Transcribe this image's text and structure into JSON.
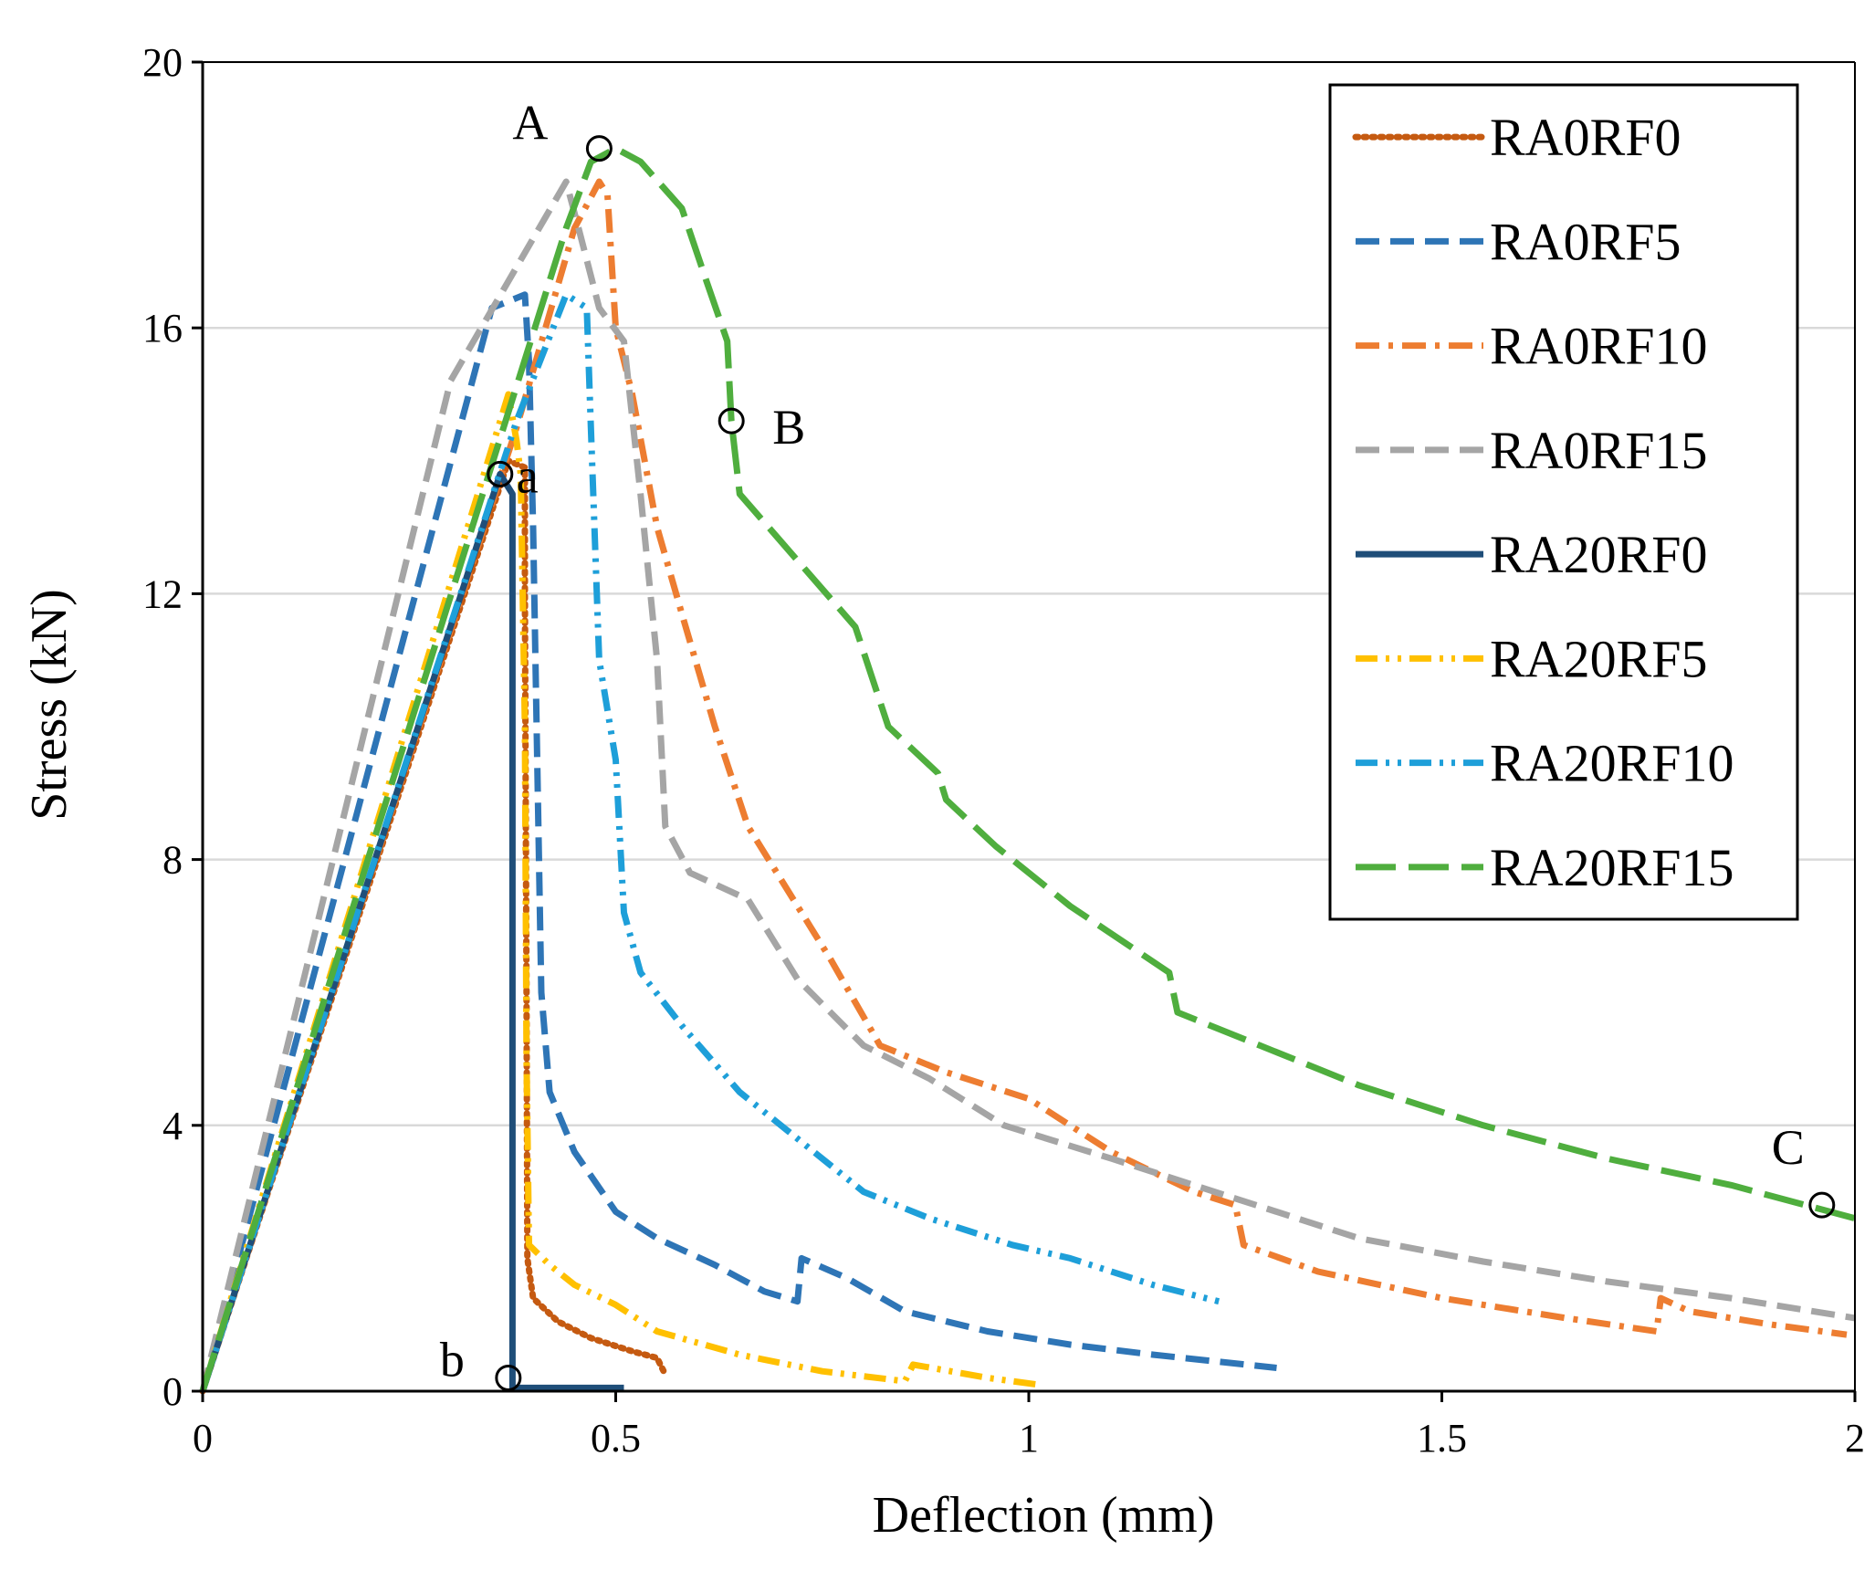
{
  "chart_data": {
    "type": "line",
    "title": "",
    "xlabel": "Deflection (mm)",
    "ylabel": "Stress (kN)",
    "xlim": [
      0,
      2
    ],
    "ylim": [
      0,
      20
    ],
    "xticks": [
      0,
      0.5,
      1,
      1.5,
      2
    ],
    "xtick_labels": [
      "0",
      "0.5",
      "1",
      "1.5",
      "2"
    ],
    "yticks": [
      0,
      4,
      8,
      12,
      16,
      20
    ],
    "ytick_labels": [
      "0",
      "4",
      "8",
      "12",
      "16",
      "20"
    ],
    "grid": "horizontal",
    "legend_position": "top-right",
    "series": [
      {
        "name": "RA0RF0",
        "color": "#c55a11",
        "dash": "dot",
        "points": [
          [
            0,
            0
          ],
          [
            0.37,
            14.0
          ],
          [
            0.39,
            13.9
          ],
          [
            0.39,
            12.0
          ],
          [
            0.392,
            6.0
          ],
          [
            0.393,
            2.0
          ],
          [
            0.4,
            1.4
          ],
          [
            0.43,
            1.05
          ],
          [
            0.47,
            0.8
          ],
          [
            0.52,
            0.6
          ],
          [
            0.55,
            0.5
          ],
          [
            0.56,
            0.25
          ]
        ]
      },
      {
        "name": "RA0RF5",
        "color": "#2e75b6",
        "dash": "dash",
        "points": [
          [
            0,
            0
          ],
          [
            0.35,
            16.3
          ],
          [
            0.39,
            16.5
          ],
          [
            0.395,
            15.5
          ],
          [
            0.4,
            13.0
          ],
          [
            0.41,
            6.0
          ],
          [
            0.42,
            4.5
          ],
          [
            0.45,
            3.6
          ],
          [
            0.5,
            2.7
          ],
          [
            0.55,
            2.3
          ],
          [
            0.62,
            1.9
          ],
          [
            0.68,
            1.5
          ],
          [
            0.72,
            1.35
          ],
          [
            0.725,
            2.0
          ],
          [
            0.78,
            1.7
          ],
          [
            0.85,
            1.2
          ],
          [
            0.95,
            0.9
          ],
          [
            1.05,
            0.7
          ],
          [
            1.15,
            0.55
          ],
          [
            1.3,
            0.35
          ]
        ]
      },
      {
        "name": "RA0RF10",
        "color": "#ed7d31",
        "dash": "dashdot",
        "points": [
          [
            0,
            0
          ],
          [
            0.38,
            14.5
          ],
          [
            0.45,
            17.5
          ],
          [
            0.48,
            18.2
          ],
          [
            0.49,
            18.0
          ],
          [
            0.5,
            16.0
          ],
          [
            0.52,
            15.0
          ],
          [
            0.55,
            13.0
          ],
          [
            0.58,
            11.7
          ],
          [
            0.62,
            10.0
          ],
          [
            0.66,
            8.5
          ],
          [
            0.7,
            7.7
          ],
          [
            0.76,
            6.5
          ],
          [
            0.82,
            5.2
          ],
          [
            0.9,
            4.8
          ],
          [
            1.0,
            4.4
          ],
          [
            1.1,
            3.6
          ],
          [
            1.2,
            3.0
          ],
          [
            1.25,
            2.8
          ],
          [
            1.26,
            2.2
          ],
          [
            1.35,
            1.8
          ],
          [
            1.5,
            1.4
          ],
          [
            1.65,
            1.1
          ],
          [
            1.76,
            0.9
          ],
          [
            1.765,
            1.4
          ],
          [
            1.8,
            1.2
          ],
          [
            1.9,
            1.0
          ],
          [
            1.99,
            0.85
          ]
        ]
      },
      {
        "name": "RA0RF15",
        "color": "#a5a5a5",
        "dash": "dash",
        "points": [
          [
            0,
            0
          ],
          [
            0.3,
            15.2
          ],
          [
            0.44,
            18.2
          ],
          [
            0.455,
            17.5
          ],
          [
            0.48,
            16.3
          ],
          [
            0.51,
            15.8
          ],
          [
            0.53,
            13.5
          ],
          [
            0.55,
            11.0
          ],
          [
            0.56,
            8.5
          ],
          [
            0.59,
            7.8
          ],
          [
            0.66,
            7.4
          ],
          [
            0.72,
            6.2
          ],
          [
            0.8,
            5.2
          ],
          [
            0.88,
            4.7
          ],
          [
            0.97,
            4.0
          ],
          [
            1.1,
            3.5
          ],
          [
            1.25,
            2.9
          ],
          [
            1.4,
            2.3
          ],
          [
            1.55,
            1.95
          ],
          [
            1.7,
            1.65
          ],
          [
            1.85,
            1.4
          ],
          [
            2.0,
            1.1
          ]
        ]
      },
      {
        "name": "RA20RF0",
        "color": "#1f4e79",
        "dash": "solid",
        "points": [
          [
            0,
            0
          ],
          [
            0.36,
            13.8
          ],
          [
            0.375,
            13.5
          ],
          [
            0.375,
            0.05
          ],
          [
            0.51,
            0.05
          ]
        ]
      },
      {
        "name": "RA20RF5",
        "color": "#ffc000",
        "dash": "dashdotdot",
        "points": [
          [
            0,
            0
          ],
          [
            0.37,
            15.0
          ],
          [
            0.38,
            14.3
          ],
          [
            0.385,
            13.8
          ],
          [
            0.39,
            10.0
          ],
          [
            0.392,
            5.0
          ],
          [
            0.395,
            2.2
          ],
          [
            0.42,
            1.9
          ],
          [
            0.45,
            1.6
          ],
          [
            0.5,
            1.3
          ],
          [
            0.55,
            0.9
          ],
          [
            0.65,
            0.55
          ],
          [
            0.75,
            0.3
          ],
          [
            0.85,
            0.15
          ],
          [
            0.86,
            0.4
          ],
          [
            0.95,
            0.2
          ],
          [
            1.01,
            0.1
          ]
        ]
      },
      {
        "name": "RA20RF10",
        "color": "#1e9fd9",
        "dash": "dashdotdot",
        "points": [
          [
            0,
            0
          ],
          [
            0.38,
            14.6
          ],
          [
            0.44,
            16.5
          ],
          [
            0.465,
            16.3
          ],
          [
            0.47,
            14.5
          ],
          [
            0.48,
            11.0
          ],
          [
            0.5,
            9.5
          ],
          [
            0.51,
            7.2
          ],
          [
            0.53,
            6.3
          ],
          [
            0.58,
            5.5
          ],
          [
            0.65,
            4.5
          ],
          [
            0.72,
            3.8
          ],
          [
            0.8,
            3.0
          ],
          [
            0.88,
            2.6
          ],
          [
            0.98,
            2.2
          ],
          [
            1.05,
            2.0
          ],
          [
            1.15,
            1.6
          ],
          [
            1.23,
            1.35
          ]
        ]
      },
      {
        "name": "RA20RF15",
        "color": "#4fae3e",
        "dash": "longdash",
        "points": [
          [
            0,
            0
          ],
          [
            0.2,
            8.0
          ],
          [
            0.44,
            17.5
          ],
          [
            0.47,
            18.5
          ],
          [
            0.5,
            18.7
          ],
          [
            0.53,
            18.5
          ],
          [
            0.58,
            17.8
          ],
          [
            0.61,
            16.7
          ],
          [
            0.635,
            15.8
          ],
          [
            0.64,
            14.6
          ],
          [
            0.65,
            13.5
          ],
          [
            0.72,
            12.5
          ],
          [
            0.79,
            11.5
          ],
          [
            0.83,
            10.0
          ],
          [
            0.89,
            9.3
          ],
          [
            0.9,
            8.9
          ],
          [
            0.96,
            8.2
          ],
          [
            1.05,
            7.3
          ],
          [
            1.17,
            6.3
          ],
          [
            1.18,
            5.7
          ],
          [
            1.28,
            5.2
          ],
          [
            1.4,
            4.6
          ],
          [
            1.55,
            4.0
          ],
          [
            1.7,
            3.5
          ],
          [
            1.85,
            3.1
          ],
          [
            2.0,
            2.6
          ]
        ]
      }
    ],
    "annotations": [
      {
        "label": "A",
        "x": 0.48,
        "y": 18.7
      },
      {
        "label": "B",
        "x": 0.64,
        "y": 14.6
      },
      {
        "label": "C",
        "x": 1.96,
        "y": 2.8
      },
      {
        "label": "a",
        "x": 0.36,
        "y": 13.8
      },
      {
        "label": "b",
        "x": 0.37,
        "y": 0.2
      }
    ]
  }
}
